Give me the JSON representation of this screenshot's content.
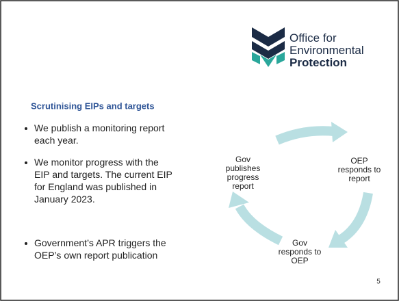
{
  "logo": {
    "lines": [
      "Office for",
      "Environmental",
      "Protection"
    ]
  },
  "heading": "Scrutinising EIPs and targets",
  "bullets": [
    {
      "lines": [
        "We publish a monitoring report",
        "each year."
      ]
    },
    {
      "lines": [
        "We monitor progress with the",
        "EIP and targets. The current EIP",
        "for England was published in",
        "January 2023."
      ]
    },
    {
      "lines": [
        "Government’s APR triggers the",
        "OEP’s own report publication"
      ]
    }
  ],
  "cycle": {
    "nodes": [
      {
        "lines": [
          "Gov",
          "publishes",
          "progress",
          "report"
        ]
      },
      {
        "lines": [
          "OEP",
          "responds to",
          "report"
        ]
      },
      {
        "lines": [
          "Gov",
          "responds to",
          "OEP"
        ]
      }
    ]
  },
  "page_number": "5"
}
